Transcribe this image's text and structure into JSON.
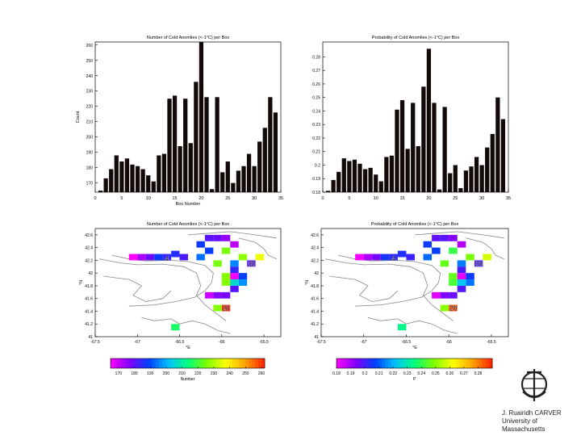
{
  "chart_data": [
    {
      "type": "bar",
      "title": "Number of Cold Anomlies (<-1°C) per Box",
      "xlabel": "Box Number",
      "ylabel": "Count",
      "xlim": [
        0,
        35
      ],
      "ylim": [
        164,
        262
      ],
      "x_ticks": [
        "0",
        "5",
        "10",
        "15",
        "20",
        "25",
        "30",
        "35"
      ],
      "y_ticks": [
        "170",
        "180",
        "190",
        "200",
        "210",
        "220",
        "230",
        "240",
        "250",
        "260"
      ],
      "categories": [
        1,
        2,
        3,
        4,
        5,
        6,
        7,
        8,
        9,
        10,
        11,
        12,
        13,
        14,
        15,
        16,
        17,
        18,
        19,
        20,
        21,
        22,
        23,
        24,
        25,
        26,
        27,
        28,
        29,
        30,
        31,
        32,
        33,
        34
      ],
      "values": [
        165,
        173,
        179,
        188,
        184,
        186,
        182,
        181,
        179,
        175,
        171,
        188,
        189,
        225,
        227,
        194,
        225,
        196,
        236,
        262,
        226,
        166,
        226,
        177,
        184,
        170,
        178,
        181,
        189,
        181,
        197,
        206,
        226,
        216
      ],
      "bar_color": "#120a08"
    },
    {
      "type": "bar",
      "title": "Probability of Cold Anomlies (<-1°C) per Box",
      "xlabel": "",
      "ylabel": "",
      "xlim": [
        0,
        35
      ],
      "ylim": [
        0.18,
        0.291
      ],
      "x_ticks": [
        "0",
        "5",
        "10",
        "15",
        "20",
        "25",
        "30",
        "35"
      ],
      "y_ticks": [
        "0.18",
        "0.19",
        "0.2",
        "0.21",
        "0.22",
        "0.23",
        "0.24",
        "0.25",
        "0.26",
        "0.27",
        "0.28"
      ],
      "categories": [
        1,
        2,
        3,
        4,
        5,
        6,
        7,
        8,
        9,
        10,
        11,
        12,
        13,
        14,
        15,
        16,
        17,
        18,
        19,
        20,
        21,
        22,
        23,
        24,
        25,
        26,
        27,
        28,
        29,
        30,
        31,
        32,
        33,
        34
      ],
      "values": [
        0.181,
        0.189,
        0.195,
        0.205,
        0.203,
        0.204,
        0.201,
        0.197,
        0.198,
        0.193,
        0.188,
        0.206,
        0.207,
        0.241,
        0.248,
        0.212,
        0.246,
        0.214,
        0.258,
        0.286,
        0.246,
        0.182,
        0.243,
        0.194,
        0.2,
        0.183,
        0.196,
        0.199,
        0.206,
        0.2,
        0.213,
        0.223,
        0.25,
        0.234
      ],
      "bar_color": "#120a08"
    },
    {
      "type": "heatmap",
      "title": "Number of Cold Anomlies (<-1°C) per Box",
      "xlabel": "°E",
      "ylabel": "°N",
      "xlim": [
        -67.5,
        -65.3
      ],
      "ylim": [
        41,
        42.7
      ],
      "x_ticks": [
        "-67.5",
        "-67",
        "-66.5",
        "-66",
        "-65.5"
      ],
      "y_ticks": [
        "41",
        "41.2",
        "41.4",
        "41.6",
        "41.8",
        "42",
        "42.2",
        "42.4",
        "42.6"
      ],
      "colorbar_label": "Number",
      "colorbar_ticks": [
        "170",
        "180",
        "190",
        "200",
        "210",
        "220",
        "230",
        "240",
        "250",
        "260"
      ],
      "value_range": [
        165,
        262
      ],
      "annotations": [
        {
          "text": "4",
          "lon": -66.65,
          "lat": 42.23
        },
        {
          "text": "33",
          "lon": -65.65,
          "lat": 42.15
        },
        {
          "text": "20",
          "lon": -65.95,
          "lat": 41.45
        }
      ],
      "cells": [
        {
          "lon": -67.05,
          "lat": 42.25,
          "value": 165
        },
        {
          "lon": -66.95,
          "lat": 42.25,
          "value": 173
        },
        {
          "lon": -66.85,
          "lat": 42.25,
          "value": 179
        },
        {
          "lon": -66.75,
          "lat": 42.25,
          "value": 188
        },
        {
          "lon": -66.65,
          "lat": 42.25,
          "value": 184
        },
        {
          "lon": -66.55,
          "lat": 42.3,
          "value": 186
        },
        {
          "lon": -66.45,
          "lat": 42.25,
          "value": 182
        },
        {
          "lon": -66.15,
          "lat": 42.55,
          "value": 181
        },
        {
          "lon": -66.05,
          "lat": 42.55,
          "value": 179
        },
        {
          "lon": -65.95,
          "lat": 42.55,
          "value": 175
        },
        {
          "lon": -65.85,
          "lat": 42.45,
          "value": 171
        },
        {
          "lon": -66.25,
          "lat": 42.45,
          "value": 188
        },
        {
          "lon": -66.15,
          "lat": 42.35,
          "value": 189
        },
        {
          "lon": -65.95,
          "lat": 42.35,
          "value": 225
        },
        {
          "lon": -65.75,
          "lat": 42.25,
          "value": 227
        },
        {
          "lon": -66.25,
          "lat": 42.25,
          "value": 194
        },
        {
          "lon": -66.05,
          "lat": 42.15,
          "value": 225
        },
        {
          "lon": -65.85,
          "lat": 42.15,
          "value": 196
        },
        {
          "lon": -65.55,
          "lat": 42.25,
          "value": 236
        },
        {
          "lon": -65.95,
          "lat": 41.45,
          "value": 262
        },
        {
          "lon": -65.95,
          "lat": 41.95,
          "value": 226
        },
        {
          "lon": -65.85,
          "lat": 41.95,
          "value": 166
        },
        {
          "lon": -65.95,
          "lat": 41.85,
          "value": 226
        },
        {
          "lon": -66.05,
          "lat": 41.65,
          "value": 177
        },
        {
          "lon": -65.85,
          "lat": 42.05,
          "value": 184
        },
        {
          "lon": -66.15,
          "lat": 41.65,
          "value": 170
        },
        {
          "lon": -65.95,
          "lat": 41.65,
          "value": 178
        },
        {
          "lon": -65.85,
          "lat": 41.75,
          "value": 181
        },
        {
          "lon": -65.75,
          "lat": 41.95,
          "value": 189
        },
        {
          "lon": -65.65,
          "lat": 42.15,
          "value": 181
        },
        {
          "lon": -65.75,
          "lat": 41.85,
          "value": 197
        },
        {
          "lon": -65.85,
          "lat": 41.85,
          "value": 206
        },
        {
          "lon": -66.05,
          "lat": 41.45,
          "value": 226
        },
        {
          "lon": -66.55,
          "lat": 41.15,
          "value": 216
        }
      ]
    },
    {
      "type": "heatmap",
      "title": "Probability of Cold Anomlies (<-1°C) per Box",
      "xlabel": "°E",
      "ylabel": "°N",
      "xlim": [
        -67.5,
        -65.3
      ],
      "ylim": [
        41,
        42.7
      ],
      "x_ticks": [
        "-67.5",
        "-67",
        "-66.5",
        "-66",
        "-65.5"
      ],
      "y_ticks": [
        "41",
        "41.2",
        "41.4",
        "41.6",
        "41.8",
        "42",
        "42.2",
        "42.4",
        "42.6"
      ],
      "colorbar_label": "P",
      "colorbar_ticks": [
        "0.18",
        "0.19",
        "0.2",
        "0.21",
        "0.22",
        "0.23",
        "0.24",
        "0.25",
        "0.26",
        "0.27",
        "0.28"
      ],
      "value_range": [
        0.18,
        0.29
      ],
      "annotations": [
        {
          "text": "4",
          "lon": -66.65,
          "lat": 42.23
        },
        {
          "text": "33",
          "lon": -65.65,
          "lat": 42.15
        },
        {
          "text": "20",
          "lon": -65.95,
          "lat": 41.45
        }
      ],
      "cells": [
        {
          "lon": -67.05,
          "lat": 42.25,
          "value": 0.181
        },
        {
          "lon": -66.95,
          "lat": 42.25,
          "value": 0.189
        },
        {
          "lon": -66.85,
          "lat": 42.25,
          "value": 0.195
        },
        {
          "lon": -66.75,
          "lat": 42.25,
          "value": 0.205
        },
        {
          "lon": -66.65,
          "lat": 42.25,
          "value": 0.203
        },
        {
          "lon": -66.55,
          "lat": 42.3,
          "value": 0.204
        },
        {
          "lon": -66.45,
          "lat": 42.25,
          "value": 0.201
        },
        {
          "lon": -66.15,
          "lat": 42.55,
          "value": 0.197
        },
        {
          "lon": -66.05,
          "lat": 42.55,
          "value": 0.198
        },
        {
          "lon": -65.95,
          "lat": 42.55,
          "value": 0.193
        },
        {
          "lon": -65.85,
          "lat": 42.45,
          "value": 0.188
        },
        {
          "lon": -66.25,
          "lat": 42.45,
          "value": 0.206
        },
        {
          "lon": -66.15,
          "lat": 42.35,
          "value": 0.207
        },
        {
          "lon": -65.95,
          "lat": 42.35,
          "value": 0.241
        },
        {
          "lon": -65.75,
          "lat": 42.25,
          "value": 0.248
        },
        {
          "lon": -66.25,
          "lat": 42.25,
          "value": 0.212
        },
        {
          "lon": -66.05,
          "lat": 42.15,
          "value": 0.246
        },
        {
          "lon": -65.85,
          "lat": 42.15,
          "value": 0.214
        },
        {
          "lon": -65.55,
          "lat": 42.25,
          "value": 0.258
        },
        {
          "lon": -65.95,
          "lat": 41.45,
          "value": 0.286
        },
        {
          "lon": -65.95,
          "lat": 41.95,
          "value": 0.246
        },
        {
          "lon": -65.85,
          "lat": 41.95,
          "value": 0.182
        },
        {
          "lon": -65.95,
          "lat": 41.85,
          "value": 0.243
        },
        {
          "lon": -66.05,
          "lat": 41.65,
          "value": 0.194
        },
        {
          "lon": -65.85,
          "lat": 42.05,
          "value": 0.2
        },
        {
          "lon": -66.15,
          "lat": 41.65,
          "value": 0.183
        },
        {
          "lon": -65.95,
          "lat": 41.65,
          "value": 0.196
        },
        {
          "lon": -65.85,
          "lat": 41.75,
          "value": 0.199
        },
        {
          "lon": -65.75,
          "lat": 41.95,
          "value": 0.206
        },
        {
          "lon": -65.65,
          "lat": 42.15,
          "value": 0.2
        },
        {
          "lon": -65.75,
          "lat": 41.85,
          "value": 0.213
        },
        {
          "lon": -65.85,
          "lat": 41.85,
          "value": 0.223
        },
        {
          "lon": -66.05,
          "lat": 41.45,
          "value": 0.25
        },
        {
          "lon": -66.55,
          "lat": 41.15,
          "value": 0.234
        }
      ]
    }
  ],
  "colormap": [
    "#ff00ff",
    "#8000ff",
    "#0040ff",
    "#00c0ff",
    "#00ff80",
    "#80ff00",
    "#ffff00",
    "#ffa000",
    "#ff2000"
  ],
  "logo": {
    "line1": "J. Ruairidh CARVER",
    "line2": "University of Massachusetts"
  }
}
